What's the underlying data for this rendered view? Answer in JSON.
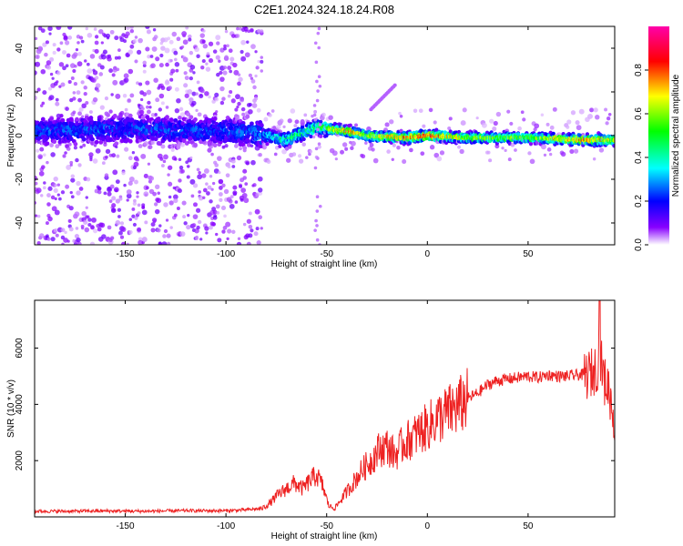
{
  "title": "C2E1.2024.324.18.24.R08",
  "chart_data": [
    {
      "type": "heatmap",
      "xlabel": "Height of straight line (km)",
      "ylabel": "Frequency (Hz)",
      "xlim": [
        -195,
        93
      ],
      "ylim": [
        -50,
        50
      ],
      "xticks": [
        -150,
        -100,
        -50,
        0,
        50
      ],
      "yticks": [
        -40,
        -20,
        0,
        20,
        40
      ],
      "colorbar": {
        "label": "Normalized spectral amplitude",
        "range": [
          0,
          1
        ],
        "ticks": [
          0.0,
          0.2,
          0.4,
          0.6,
          0.8
        ],
        "colors": [
          "#ffffff",
          "#8800ff",
          "#0000ff",
          "#00ffff",
          "#00ff00",
          "#ffff00",
          "#ff0000",
          "#ff00aa"
        ]
      },
      "ridge": [
        {
          "x": -195,
          "f": 2,
          "amp": 0.25
        },
        {
          "x": -150,
          "f": 3,
          "amp": 0.25
        },
        {
          "x": -100,
          "f": 2,
          "amp": 0.25
        },
        {
          "x": -85,
          "f": 1,
          "amp": 0.3
        },
        {
          "x": -70,
          "f": -2,
          "amp": 0.45
        },
        {
          "x": -55,
          "f": 4,
          "amp": 0.5
        },
        {
          "x": -40,
          "f": 2,
          "amp": 0.75
        },
        {
          "x": -30,
          "f": 0,
          "amp": 0.6
        },
        {
          "x": -10,
          "f": -1,
          "amp": 0.75
        },
        {
          "x": 0,
          "f": 0,
          "amp": 0.8
        },
        {
          "x": 20,
          "f": -1,
          "amp": 0.6
        },
        {
          "x": 50,
          "f": -1,
          "amp": 0.55
        },
        {
          "x": 80,
          "f": -2,
          "amp": 0.8
        },
        {
          "x": 93,
          "f": -2,
          "amp": 0.6
        }
      ]
    },
    {
      "type": "line",
      "xlabel": "Height of straight line (km)",
      "ylabel": "SNR (10 * v/v)",
      "xlim": [
        -195,
        93
      ],
      "ylim": [
        0,
        7700
      ],
      "xticks": [
        -150,
        -100,
        -50,
        0,
        50
      ],
      "yticks": [
        2000,
        4000,
        6000
      ],
      "series": [
        {
          "color": "#ee2222",
          "x": [
            -195,
            -180,
            -160,
            -140,
            -120,
            -100,
            -90,
            -82,
            -78,
            -74,
            -70,
            -66,
            -62,
            -58,
            -55,
            -52,
            -49,
            -46,
            -43,
            -40,
            -36,
            -32,
            -28,
            -24,
            -20,
            -16,
            -12,
            -8,
            -4,
            0,
            5,
            10,
            15,
            20,
            25,
            30,
            35,
            40,
            45,
            50,
            55,
            60,
            65,
            70,
            75,
            80,
            83,
            86,
            88,
            90,
            93
          ],
          "values": [
            200,
            200,
            210,
            200,
            220,
            220,
            250,
            300,
            500,
            800,
            1000,
            1200,
            1000,
            1300,
            1500,
            1100,
            400,
            300,
            600,
            900,
            1300,
            1700,
            2000,
            2400,
            2500,
            2200,
            2600,
            2800,
            3000,
            3200,
            3500,
            3700,
            3900,
            4200,
            4400,
            4700,
            4850,
            4900,
            4950,
            5000,
            4950,
            5050,
            5000,
            5000,
            5050,
            5050,
            5200,
            5600,
            4800,
            4600,
            3400
          ]
        }
      ]
    }
  ]
}
